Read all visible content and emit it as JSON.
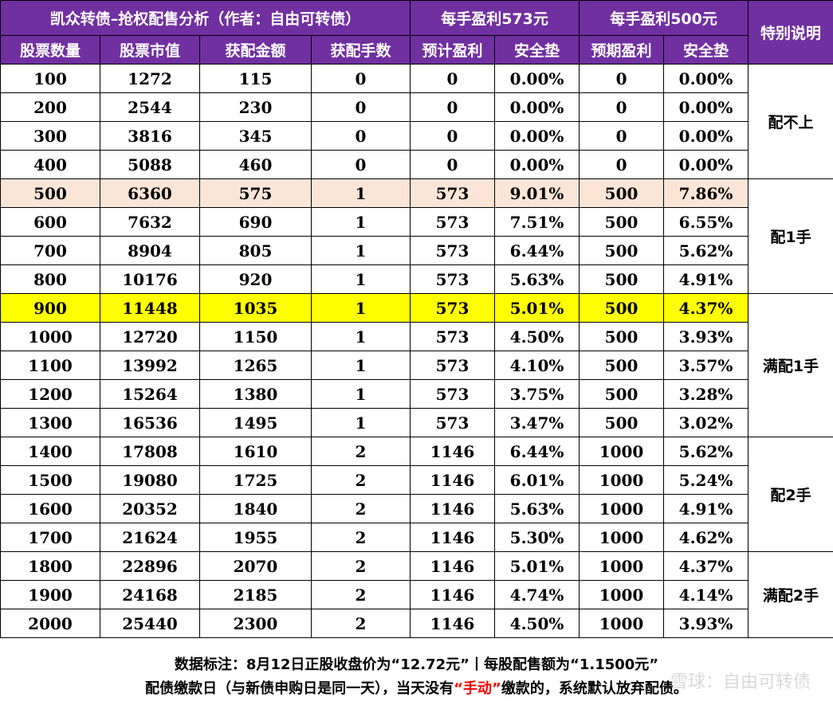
{
  "title": "凯众转债–抢权配售分析（作者：自由可转债）",
  "group_573": "每手盈利573元",
  "group_500": "每手盈利500元",
  "special": "特别说明",
  "columns": [
    "股票数量",
    "股票市值",
    "获配金额",
    "获配手数",
    "预计盈利",
    "安全垫",
    "预期盈利",
    "安全垫"
  ],
  "rows": [
    [
      "100",
      "1272",
      "115",
      "0",
      "0",
      "0.00%",
      "0",
      "0.00%"
    ],
    [
      "200",
      "2544",
      "230",
      "0",
      "0",
      "0.00%",
      "0",
      "0.00%"
    ],
    [
      "300",
      "3816",
      "345",
      "0",
      "0",
      "0.00%",
      "0",
      "0.00%"
    ],
    [
      "400",
      "5088",
      "460",
      "0",
      "0",
      "0.00%",
      "0",
      "0.00%"
    ],
    [
      "500",
      "6360",
      "575",
      "1",
      "573",
      "9.01%",
      "500",
      "7.86%"
    ],
    [
      "600",
      "7632",
      "690",
      "1",
      "573",
      "7.51%",
      "500",
      "6.55%"
    ],
    [
      "700",
      "8904",
      "805",
      "1",
      "573",
      "6.44%",
      "500",
      "5.62%"
    ],
    [
      "800",
      "10176",
      "920",
      "1",
      "573",
      "5.63%",
      "500",
      "4.91%"
    ],
    [
      "900",
      "11448",
      "1035",
      "1",
      "573",
      "5.01%",
      "500",
      "4.37%"
    ],
    [
      "1000",
      "12720",
      "1150",
      "1",
      "573",
      "4.50%",
      "500",
      "3.93%"
    ],
    [
      "1100",
      "13992",
      "1265",
      "1",
      "573",
      "4.10%",
      "500",
      "3.57%"
    ],
    [
      "1200",
      "15264",
      "1380",
      "1",
      "573",
      "3.75%",
      "500",
      "3.28%"
    ],
    [
      "1300",
      "16536",
      "1495",
      "1",
      "573",
      "3.47%",
      "500",
      "3.02%"
    ],
    [
      "1400",
      "17808",
      "1610",
      "2",
      "1146",
      "6.44%",
      "1000",
      "5.62%"
    ],
    [
      "1500",
      "19080",
      "1725",
      "2",
      "1146",
      "6.01%",
      "1000",
      "5.24%"
    ],
    [
      "1600",
      "20352",
      "1840",
      "2",
      "1146",
      "5.63%",
      "1000",
      "4.91%"
    ],
    [
      "1700",
      "21624",
      "1955",
      "2",
      "1146",
      "5.30%",
      "1000",
      "4.62%"
    ],
    [
      "1800",
      "22896",
      "2070",
      "2",
      "1146",
      "5.01%",
      "1000",
      "4.37%"
    ],
    [
      "1900",
      "24168",
      "2185",
      "2",
      "1146",
      "4.74%",
      "1000",
      "4.14%"
    ],
    [
      "2000",
      "25440",
      "2300",
      "2",
      "1146",
      "4.50%",
      "1000",
      "3.93%"
    ]
  ],
  "row_highlights": [
    "",
    "",
    "",
    "",
    "peach",
    "",
    "",
    "",
    "yellow",
    "",
    "",
    "",
    "",
    "",
    "",
    "",
    "",
    "",
    "",
    ""
  ],
  "notes": [
    {
      "label": "配不上",
      "span": 4
    },
    {
      "label": "配1手",
      "span": 4
    },
    {
      "label": "满配1手",
      "span": 5
    },
    {
      "label": "配2手",
      "span": 4
    },
    {
      "label": "满配2手",
      "span": 3
    }
  ],
  "footer": {
    "line1": "数据标注：8月12日正股收盘价为“12.72元”丨每股配售额为“1.1500元”",
    "line2_a": "配债缴款日（与新债申购日是同一天），当天没有",
    "line2_red": "“手动”",
    "line2_b": "缴款的，系统默认放弃配债。"
  },
  "watermark": "雪球：自由可转债",
  "colors": {
    "header_bg": "#7030a0",
    "header_text": "#ffffff",
    "peach": "#fbe5d6",
    "yellow": "#ffff00",
    "emphasis": "#ff0000"
  }
}
